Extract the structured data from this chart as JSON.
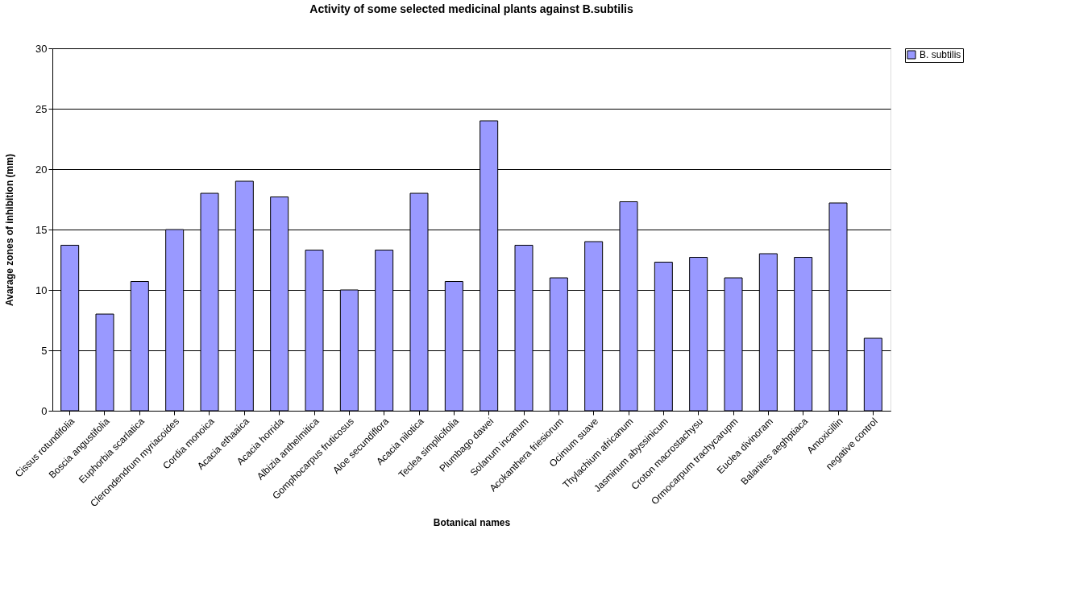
{
  "chart_data": {
    "type": "bar",
    "title": "Activity of some selected medicinal plants against B.subtilis",
    "xlabel": "Botanical names",
    "ylabel": "Avarage zones of inhibition (mm)",
    "categories": [
      "Cissus rotundifolia",
      "Boscia  angustifolia",
      "Euphorbia  scarlatica",
      "Clerondendrum  myriacoides",
      "Cordia  monoica",
      "Acacia  ethaaica",
      "Acacia  horrida",
      "Albizia  anthelmitica",
      "Gomphocarpus fruticosus",
      "Aloe secundiflora",
      "Acacia  nilotica",
      "Teclea simplicifolia",
      "Plumbago dawei",
      "Solanum  incanum",
      "Acokanthera friesiorum",
      "Ocimum suave",
      "Thylachium africanum",
      "Jasminum abyssinicum",
      "Croton macrostachysu",
      "Ormocarpum  trachycarupm",
      "Euclea divinoram",
      "Balanites aeghptiaca",
      "Amoxicillin",
      "negative control"
    ],
    "series": [
      {
        "name": "B. subtilis",
        "color": "#9999ff",
        "values": [
          13.7,
          8,
          10.7,
          15,
          18,
          19,
          17.7,
          13.3,
          10,
          13.3,
          18,
          10.7,
          24,
          13.7,
          11,
          14,
          17.3,
          12.3,
          12.7,
          11,
          13,
          12.7,
          17.2,
          6
        ]
      }
    ],
    "ylim": [
      0,
      30
    ],
    "yticks": [
      0,
      5,
      10,
      15,
      20,
      25,
      30
    ],
    "grid": "y",
    "legend": "right"
  }
}
